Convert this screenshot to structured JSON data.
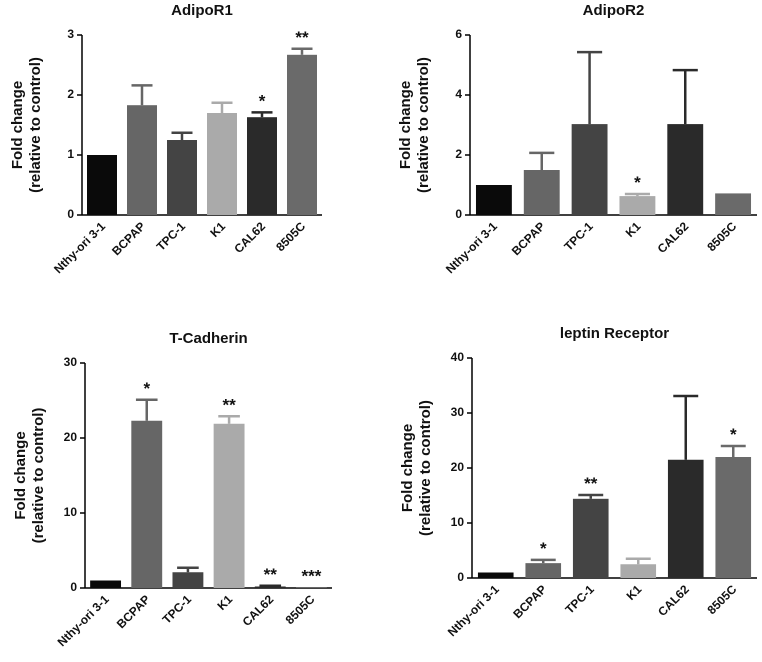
{
  "chart_data": [
    {
      "type": "bar",
      "title": "AdipoR1",
      "ylabel": [
        "Fold change",
        "(relative to control)"
      ],
      "categories": [
        "Nthy-ori 3-1",
        "BCPAP",
        "TPC-1",
        "K1",
        "CAL62",
        "8505C"
      ],
      "values": [
        1.0,
        1.83,
        1.25,
        1.7,
        1.63,
        2.67
      ],
      "errors": [
        null,
        0.33,
        0.12,
        0.17,
        0.08,
        0.1
      ],
      "significance": [
        null,
        null,
        null,
        null,
        "*",
        "**"
      ],
      "colors": [
        "#0a0a0a",
        "#666666",
        "#444444",
        "#aaaaaa",
        "#2a2a2a",
        "#6a6a6a"
      ],
      "ylim": [
        0,
        3
      ],
      "yticks": [
        0,
        1,
        2,
        3
      ]
    },
    {
      "type": "bar",
      "title": "AdipoR2",
      "ylabel": [
        "Fold change",
        "(relative to control)"
      ],
      "categories": [
        "Nthy-ori 3-1",
        "BCPAP",
        "TPC-1",
        "K1",
        "CAL62",
        "8505C"
      ],
      "values": [
        1.0,
        1.5,
        3.03,
        0.63,
        3.03,
        0.72
      ],
      "errors": [
        null,
        0.57,
        2.4,
        0.07,
        1.8,
        null
      ],
      "significance": [
        null,
        null,
        null,
        "*",
        null,
        null
      ],
      "colors": [
        "#0a0a0a",
        "#666666",
        "#444444",
        "#aaaaaa",
        "#2a2a2a",
        "#6a6a6a"
      ],
      "ylim": [
        0,
        6
      ],
      "yticks": [
        0,
        2,
        4,
        6
      ]
    },
    {
      "type": "bar",
      "title": "T-Cadherin",
      "ylabel": [
        "Fold change",
        "(relative to control)"
      ],
      "categories": [
        "Nthy-ori 3-1",
        "BCPAP",
        "TPC-1",
        "K1",
        "CAL62",
        "8505C"
      ],
      "values": [
        1.0,
        22.3,
        2.1,
        21.9,
        0.2,
        0.05
      ],
      "errors": [
        null,
        2.8,
        0.6,
        1.0,
        0.1,
        null
      ],
      "significance": [
        null,
        "*",
        null,
        "**",
        "**",
        "***"
      ],
      "colors": [
        "#0a0a0a",
        "#666666",
        "#444444",
        "#aaaaaa",
        "#2a2a2a",
        "#6a6a6a"
      ],
      "ylim": [
        0,
        30
      ],
      "yticks": [
        0,
        10,
        20,
        30
      ]
    },
    {
      "type": "bar",
      "title": "leptin Receptor",
      "ylabel": [
        "Fold change",
        "(relative to control)"
      ],
      "categories": [
        "Nthy-ori 3-1",
        "BCPAP",
        "TPC-1",
        "K1",
        "CAL62",
        "8505C"
      ],
      "values": [
        1.0,
        2.7,
        14.4,
        2.5,
        21.5,
        22.0
      ],
      "errors": [
        null,
        0.6,
        0.7,
        1.0,
        11.6,
        2.0
      ],
      "significance": [
        null,
        "*",
        "**",
        null,
        null,
        "*"
      ],
      "colors": [
        "#0a0a0a",
        "#666666",
        "#444444",
        "#aaaaaa",
        "#2a2a2a",
        "#6a6a6a"
      ],
      "ylim": [
        0,
        40
      ],
      "yticks": [
        0,
        10,
        20,
        30,
        40
      ]
    }
  ]
}
